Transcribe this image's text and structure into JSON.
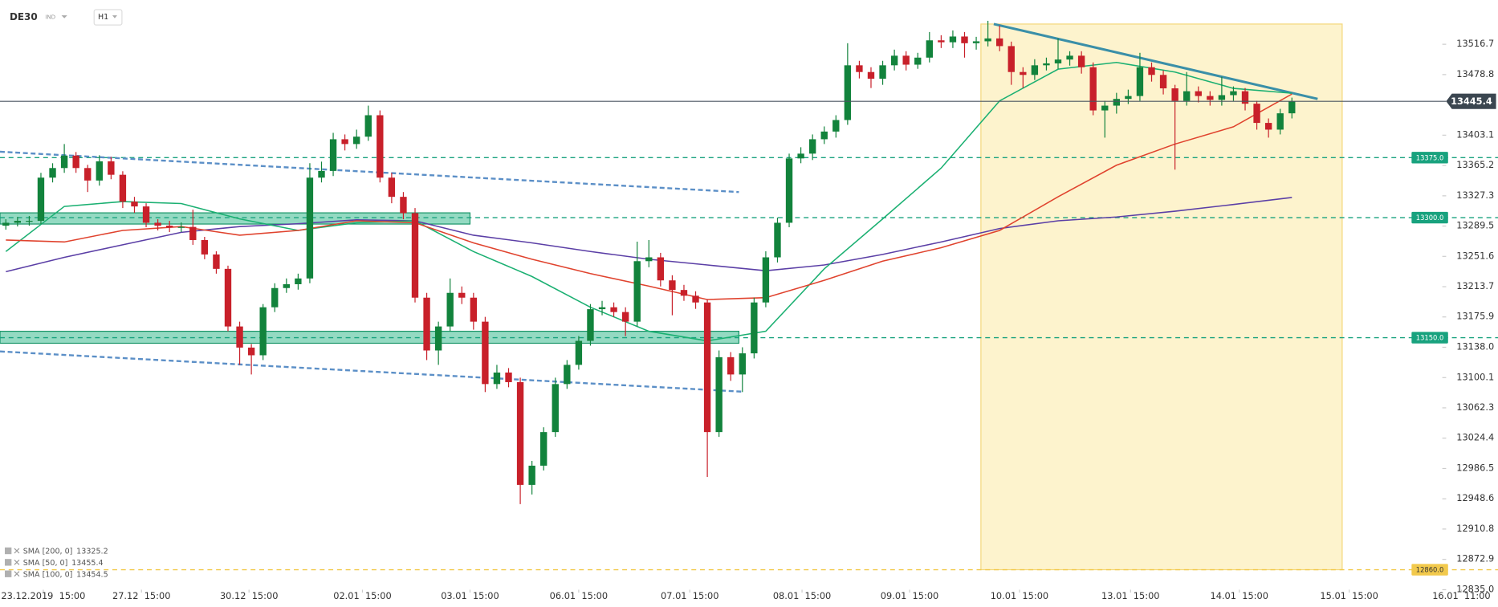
{
  "chart_data": {
    "type": "candlestick",
    "symbol": "DE30",
    "symbol_type": "IND",
    "timeframe": "H1",
    "up_color": "#12833c",
    "down_color": "#c8202a",
    "xlim": [
      -0.5,
      122.7
    ],
    "ylim": [
      12835,
      13560
    ],
    "candles": {
      "open": [
        13290.0,
        13293.6,
        13296.0,
        13296.0,
        13350.0,
        13362.0,
        13377.6,
        13362.0,
        13346.4,
        13370.4,
        13353.6,
        13320.0,
        13314.0,
        13293.6,
        13290.0,
        13287.6,
        13288.4,
        13272.0,
        13254.0,
        13236.0,
        13164.0,
        13137.6,
        13128.0,
        13188.0,
        13212.0,
        13216.8,
        13224.0,
        13350.0,
        13358.4,
        13398.0,
        13392.0,
        13401.2,
        13428.0,
        13350.0,
        13326.0,
        13305.6,
        13200.0,
        13134.0,
        13164.0,
        13206.0,
        13200.0,
        13170.0,
        13092.0,
        13106.4,
        13094.4,
        12966.0,
        12990.0,
        13032.0,
        13092.0,
        13116.0,
        13146.0,
        13185.6,
        13188.0,
        13182.0,
        13170.0,
        13245.6,
        13250.4,
        13221.6,
        13209.6,
        13202.4,
        13194.0,
        13032.0,
        13125.6,
        13104.0,
        13130.4,
        13194.0,
        13250.4,
        13293.6,
        13374.0,
        13380.0,
        13398.0,
        13407.6,
        13422.0,
        13490.4,
        13482.0,
        13473.6,
        13490.4,
        13502.4,
        13491.2,
        13500.0,
        13521.6,
        13519.2,
        13526.4,
        13518.0,
        13520.4,
        13524.0,
        13514.4,
        13482.0,
        13478.4,
        13490.4,
        13492.8,
        13497.6,
        13502.4,
        13488.0,
        13434.0,
        13440.0,
        13448.4,
        13452.0,
        13488.0,
        13478.4,
        13461.6,
        13446.0,
        13458.0,
        13452.0,
        13447.2,
        13453.1,
        13458.0,
        13442.4,
        13418.4,
        13410.0,
        13430.4
      ],
      "high": [
        13298,
        13301,
        13302,
        13356,
        13368,
        13392,
        13382,
        13366,
        13378,
        13376,
        13358,
        13326,
        13318,
        13298,
        13296,
        13294,
        13310,
        13276,
        13258,
        13240,
        13170,
        13142,
        13192,
        13218,
        13224,
        13230,
        13368,
        13370,
        13406,
        13404,
        13410,
        13440,
        13434,
        13356,
        13332,
        13312,
        13206,
        13170,
        13224,
        13214,
        13206,
        13176,
        13116,
        13112,
        13100,
        12996,
        13038,
        13100,
        13122,
        13152,
        13192,
        13196,
        13194,
        13188,
        13270,
        13272,
        13256,
        13228,
        13216,
        13208,
        13198,
        13134,
        13132,
        13138,
        13200,
        13258,
        13300,
        13380,
        13388,
        13404,
        13414,
        13428,
        13518,
        13496,
        13488,
        13496,
        13510,
        13508,
        13506,
        13532,
        13528,
        13534,
        13532,
        13526,
        13546,
        13540,
        13520,
        13488,
        13498,
        13500,
        13524,
        13508,
        13508,
        13494,
        13446,
        13456,
        13460,
        13506,
        13494,
        13484,
        13466,
        13482,
        13464,
        13458,
        13476,
        13464,
        13462,
        13446,
        13424,
        13436,
        13450
      ],
      "low": [
        13285,
        13289,
        13290,
        13292,
        13344,
        13356,
        13356,
        13332,
        13340,
        13348,
        13312,
        13306,
        13288,
        13284,
        13282,
        13282,
        13266,
        13248,
        13230,
        13158,
        13116,
        13104,
        13122,
        13182,
        13206,
        13210,
        13218,
        13344,
        13352,
        13384,
        13386,
        13396,
        13344,
        13318,
        13298,
        13194,
        13122,
        13116,
        13158,
        13192,
        13160,
        13082,
        13086,
        13088,
        12942,
        12954,
        12984,
        13026,
        13086,
        13110,
        13140,
        13178,
        13176,
        13152,
        13164,
        13238,
        13214,
        13178,
        13196,
        13186,
        12976,
        13026,
        13096,
        13082,
        13124,
        13188,
        13244,
        13288,
        13368,
        13372,
        13392,
        13400,
        13416,
        13474,
        13462,
        13466,
        13484,
        13484,
        13486,
        13494,
        13512,
        13512,
        13500,
        13510,
        13514,
        13508,
        13466,
        13462,
        13472,
        13484,
        13486,
        13490,
        13480,
        13428,
        13400,
        13430,
        13442,
        13446,
        13470,
        13454,
        13360,
        13440,
        13444,
        13440,
        13440,
        13446,
        13434,
        13410,
        13400,
        13404,
        13424
      ],
      "close": [
        13293.6,
        13296.0,
        13296.0,
        13350.0,
        13362.0,
        13377.6,
        13362.0,
        13346.4,
        13370.4,
        13353.6,
        13320.0,
        13314.0,
        13293.6,
        13290.0,
        13287.6,
        13288.4,
        13272.0,
        13254.0,
        13236.0,
        13164.0,
        13137.6,
        13128.0,
        13188.0,
        13212.0,
        13216.8,
        13224.0,
        13350.0,
        13358.4,
        13398.0,
        13392.0,
        13401.2,
        13428.0,
        13350.0,
        13326.0,
        13305.6,
        13200.0,
        13134.0,
        13164.0,
        13206.0,
        13200.0,
        13170.0,
        13092.0,
        13106.4,
        13094.4,
        12966.0,
        12990.0,
        13032.0,
        13092.0,
        13116.0,
        13146.0,
        13185.6,
        13188.0,
        13182.0,
        13170.0,
        13245.6,
        13250.4,
        13221.6,
        13209.6,
        13202.4,
        13194.0,
        13032.0,
        13125.6,
        13104.0,
        13130.4,
        13194.0,
        13250.4,
        13293.6,
        13374.0,
        13380.0,
        13398.0,
        13407.6,
        13422.0,
        13490.4,
        13482.0,
        13473.6,
        13490.4,
        13502.4,
        13491.2,
        13500.0,
        13521.6,
        13519.2,
        13526.4,
        13518.0,
        13520.4,
        13524.0,
        13514.4,
        13482.0,
        13478.4,
        13490.4,
        13492.8,
        13497.6,
        13502.4,
        13488.0,
        13434.0,
        13440.0,
        13448.4,
        13452.0,
        13488.0,
        13478.4,
        13461.6,
        13446.0,
        13458.0,
        13452.0,
        13447.2,
        13453.1,
        13458.0,
        13442.4,
        13418.4,
        13410.0,
        13430.4,
        13445.4
      ]
    },
    "series": [
      {
        "name": "SMA [200, 0]",
        "last": 13325.2,
        "color": "#5b3fa6",
        "x": [
          0,
          5,
          10,
          15,
          20,
          25,
          30,
          35,
          40,
          45,
          50,
          55,
          60,
          65,
          70,
          75,
          80,
          85,
          90,
          95,
          100,
          105,
          110
        ],
        "values": [
          13232.4,
          13250.4,
          13266,
          13281.6,
          13288.8,
          13292.4,
          13297.2,
          13296,
          13278,
          13268.4,
          13257.6,
          13248,
          13240.8,
          13233.6,
          13240.8,
          13254,
          13269.6,
          13286.4,
          13296,
          13300.8,
          13308,
          13316.4,
          13325.2
        ]
      },
      {
        "name": "SMA [50, 0]",
        "last": 13455.4,
        "color": "#1bb072",
        "x": [
          0,
          5,
          10,
          15,
          20,
          25,
          30,
          35,
          40,
          45,
          50,
          55,
          60,
          65,
          70,
          75,
          80,
          85,
          90,
          95,
          100,
          105,
          110
        ],
        "values": [
          13257.6,
          13314,
          13320,
          13317.6,
          13298.4,
          13284,
          13293.6,
          13296,
          13257.6,
          13226.4,
          13188,
          13158,
          13146,
          13158,
          13236,
          13298.4,
          13362,
          13446,
          13485.6,
          13494,
          13482,
          13461.6,
          13455.4
        ]
      },
      {
        "name": "SMA [100, 0]",
        "last": 13454.5,
        "color": "#e0432e",
        "x": [
          0,
          5,
          10,
          15,
          20,
          25,
          30,
          35,
          40,
          45,
          50,
          55,
          60,
          65,
          70,
          75,
          80,
          85,
          90,
          95,
          100,
          105,
          110
        ],
        "values": [
          13272,
          13269.6,
          13284,
          13288.8,
          13278,
          13284,
          13296,
          13293.6,
          13268.4,
          13248,
          13230,
          13214.4,
          13197.6,
          13200,
          13221.6,
          13245.6,
          13262.4,
          13284,
          13326,
          13365.6,
          13392,
          13413.6,
          13454.5
        ]
      }
    ],
    "xticks": [
      {
        "value": 3.2,
        "label": "23.12.2019  15:00"
      },
      {
        "value": 11.6,
        "label": "27.12  15:00"
      },
      {
        "value": 20.8,
        "label": "30.12  15:00"
      },
      {
        "value": 30.5,
        "label": "02.01  15:00"
      },
      {
        "value": 39.7,
        "label": "03.01  15:00"
      },
      {
        "value": 49.0,
        "label": "06.01  15:00"
      },
      {
        "value": 58.5,
        "label": "07.01  15:00"
      },
      {
        "value": 68.1,
        "label": "08.01  15:00"
      },
      {
        "value": 77.3,
        "label": "09.01  15:00"
      },
      {
        "value": 86.7,
        "label": "10.01  15:00"
      },
      {
        "value": 96.2,
        "label": "13.01  15:00"
      },
      {
        "value": 105.5,
        "label": "14.01  15:00"
      },
      {
        "value": 114.9,
        "label": "15.01  15:00"
      },
      {
        "value": 124.5,
        "label": "16.01  11:00"
      }
    ],
    "yticks": [
      13516.7,
      13478.8,
      13403.1,
      13365.2,
      13327.3,
      13289.5,
      13251.6,
      13213.7,
      13175.9,
      {
        "value": 13138,
        "label": "13138.0"
      },
      13100.1,
      13062.3,
      13024.4,
      12986.5,
      12948.6,
      12910.8,
      12872.9,
      {
        "value": 12835,
        "label": "12835.0"
      }
    ],
    "current_price": 13445.4,
    "levels": [
      {
        "value": 13375,
        "label": "13375.0",
        "color": "#18a27e"
      },
      {
        "value": 13300,
        "label": "13300.0",
        "color": "#18a27e"
      },
      {
        "value": 13150,
        "label": "13150.0",
        "color": "#18a27e"
      },
      {
        "value": 12860,
        "label": "12860.0",
        "color": "#f2c94c"
      }
    ],
    "zones": [
      {
        "x": [
          -0.5,
          39.7
        ],
        "y": [
          13292,
          13306
        ]
      },
      {
        "x": [
          -0.5,
          62.7
        ],
        "y": [
          13143,
          13158
        ]
      }
    ],
    "highlight_box": {
      "x": [
        83.4,
        114.3
      ],
      "y": [
        12860,
        13542
      ]
    },
    "trendlines": [
      {
        "x": [
          -0.5,
          62.7
        ],
        "y": [
          13382.4,
          13332
        ],
        "style": "dashed",
        "color": "#5b8fc7"
      },
      {
        "x": [
          -0.5,
          63.1
        ],
        "y": [
          13132.8,
          13082.4
        ],
        "style": "dashed",
        "color": "#5b8fc7"
      },
      {
        "x": [
          84.5,
          112.2
        ],
        "y": [
          13542,
          13448.4
        ],
        "style": "solid",
        "color": "#3a8fa8"
      }
    ]
  }
}
